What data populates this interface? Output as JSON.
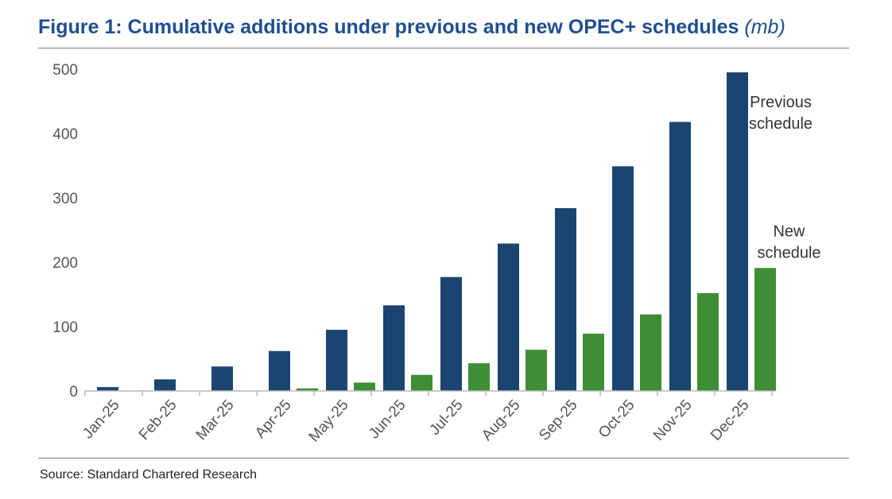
{
  "title": "Figure 1: Cumulative additions under previous and new OPEC+ schedules",
  "title_unit": "(mb)",
  "source": "Source: Standard Chartered Research",
  "chart_data": {
    "type": "bar",
    "categories": [
      "Jan-25",
      "Feb-25",
      "Mar-25",
      "Apr-25",
      "May-25",
      "Jun-25",
      "Jul-25",
      "Aug-25",
      "Sep-25",
      "Oct-25",
      "Nov-25",
      "Dec-25"
    ],
    "series": [
      {
        "name": "Previous schedule",
        "color": "#1b4570",
        "values": [
          6,
          18,
          38,
          62,
          95,
          133,
          177,
          229,
          284,
          349,
          418,
          495
        ]
      },
      {
        "name": "New schedule",
        "color": "#3e8e35",
        "values": [
          0,
          0,
          0,
          4,
          13,
          25,
          43,
          64,
          89,
          119,
          152,
          191
        ]
      }
    ],
    "annotations": [
      {
        "series": 0,
        "lines": [
          "Previous",
          "schedule"
        ]
      },
      {
        "series": 1,
        "lines": [
          "New",
          "schedule"
        ]
      }
    ],
    "yticks": [
      0,
      100,
      200,
      300,
      400,
      500
    ],
    "ylim": [
      0,
      500
    ],
    "grid": false,
    "legend": "none"
  }
}
